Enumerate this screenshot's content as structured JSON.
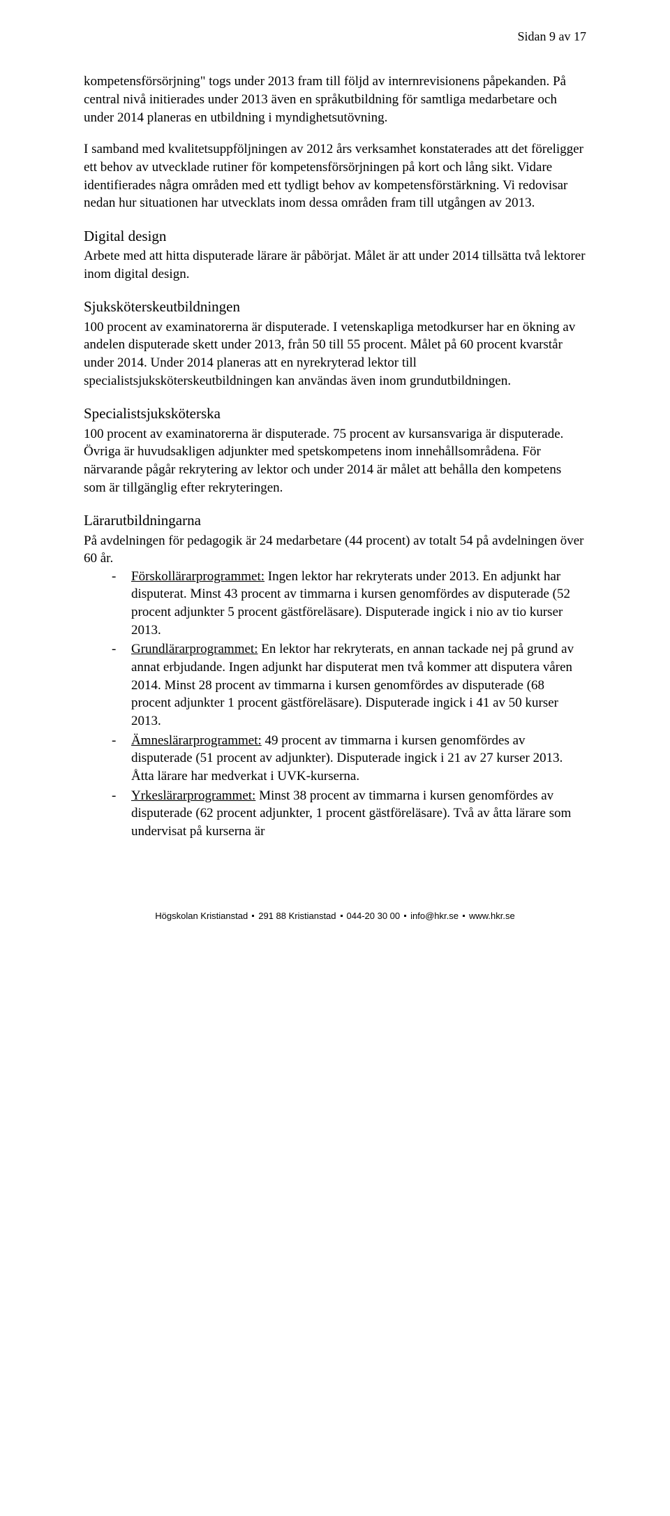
{
  "page_number": "Sidan 9 av 17",
  "para1": "kompetensförsörjning\" togs under 2013 fram till följd av internrevisionens påpekanden. På central nivå initierades under 2013 även en språkutbildning för samtliga medarbetare och under 2014 planeras en utbildning i myndighetsutövning.",
  "para2": "I samband med kvalitetsuppföljningen av 2012 års verksamhet konstaterades att det föreligger ett behov av utvecklade rutiner för kompetensförsörjningen på kort och lång sikt. Vidare identifierades några områden med ett tydligt behov av kompetensförstärkning. Vi redovisar nedan hur situationen har utvecklats inom dessa områden fram till utgången av 2013.",
  "sections": {
    "digital_design": {
      "heading": "Digital design",
      "body": "Arbete med att hitta disputerade lärare är påbörjat. Målet är att under 2014 tillsätta två lektorer inom digital design."
    },
    "sjukskotersk": {
      "heading": "Sjuksköterskeutbildningen",
      "body": "100 procent av examinatorerna är disputerade. I vetenskapliga metodkurser har en ökning av andelen disputerade skett under 2013, från 50 till 55 procent. Målet på 60 procent kvarstår under 2014. Under 2014 planeras att en nyrekryterad lektor till specialistsjuksköterskeutbildningen kan användas även inom grundutbildningen."
    },
    "specialist": {
      "heading": "Specialistsjuksköterska",
      "body": "100 procent av examinatorerna är disputerade. 75 procent av kursansvariga är disputerade. Övriga är huvudsakligen adjunkter med spetskompetens inom innehållsområdena. För närvarande pågår rekrytering av lektor och under 2014 är målet att behålla den kompetens som är tillgänglig efter rekryteringen."
    },
    "larar": {
      "heading": "Lärarutbildningarna",
      "intro": "På avdelningen för pedagogik är 24 medarbetare (44 procent) av totalt 54 på avdelningen över 60 år.",
      "items": [
        {
          "label": "Förskollärarprogrammet:",
          "text": " Ingen lektor har rekryterats under 2013. En adjunkt har disputerat. Minst 43 procent av timmarna i kursen genomfördes av disputerade (52 procent adjunkter 5 procent gästföreläsare). Disputerade ingick i nio av tio kurser 2013."
        },
        {
          "label": "Grundlärarprogrammet:",
          "text": " En lektor har rekryterats, en annan tackade nej på grund av annat erbjudande. Ingen adjunkt har disputerat men två kommer att disputera våren 2014. Minst 28 procent av timmarna i kursen genomfördes av disputerade (68 procent adjunkter 1 procent gästföreläsare). Disputerade ingick i 41 av 50 kurser 2013."
        },
        {
          "label": "Ämneslärarprogrammet:",
          "text": " 49 procent av timmarna i kursen genomfördes av disputerade (51 procent av adjunkter). Disputerade ingick i 21 av 27 kurser 2013. Åtta lärare har medverkat i UVK-kurserna."
        },
        {
          "label": "Yrkeslärarprogrammet:",
          "text": " Minst 38 procent av timmarna i kursen genomfördes av disputerade (62 procent adjunkter, 1 procent gästföreläsare). Två av åtta lärare som undervisat på kurserna är"
        }
      ]
    }
  },
  "footer": {
    "org": "Högskolan Kristianstad",
    "addr": "291 88 Kristianstad",
    "phone": "044-20 30 00",
    "email": "info@hkr.se",
    "web": "www.hkr.se"
  }
}
